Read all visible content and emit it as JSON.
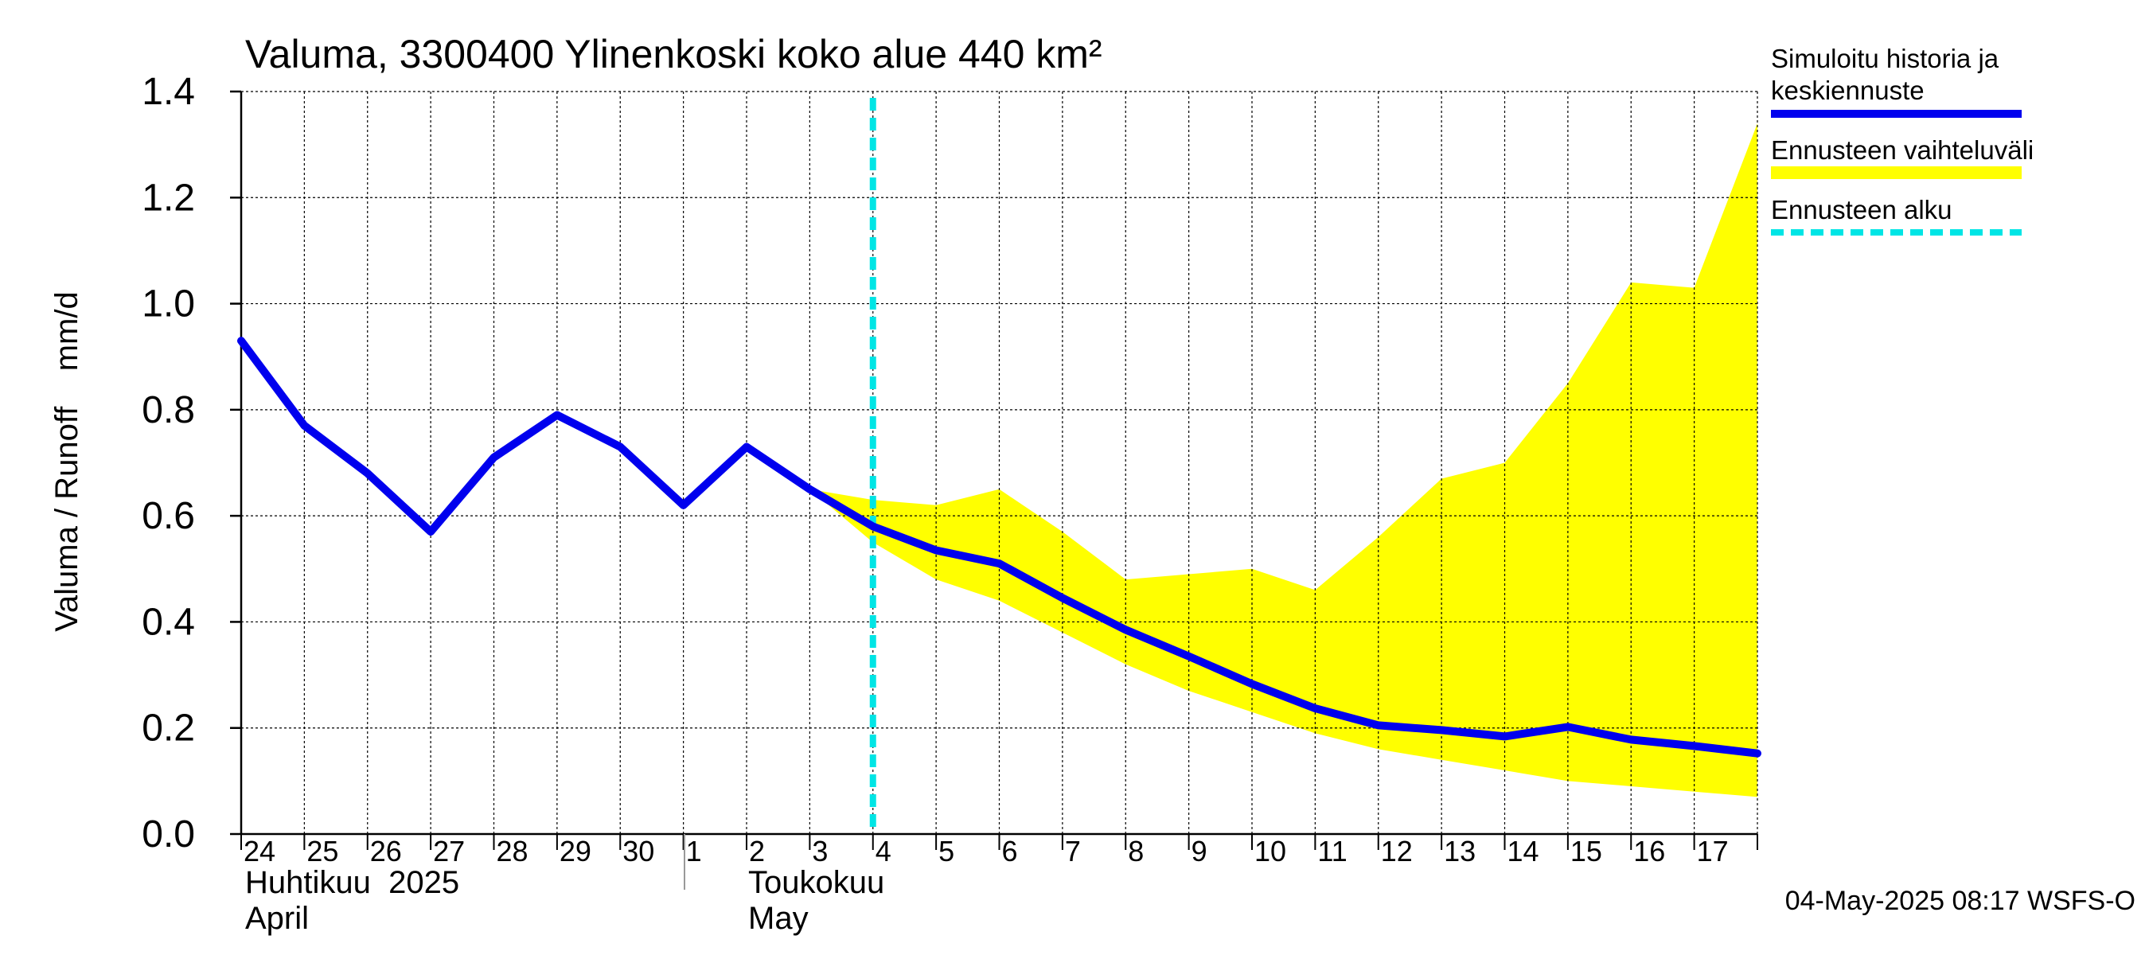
{
  "chart_data": {
    "type": "line",
    "title": "Valuma, 3300400 Ylinenkoski koko alue 440 km²",
    "ylabel": "Valuma / Runoff    mm/d",
    "ylim": [
      0,
      1.4
    ],
    "yticks": [
      0,
      0.2,
      0.4,
      0.6,
      0.8,
      1.0,
      1.2,
      1.4
    ],
    "ytick_labels": [
      "0.0",
      "0.2",
      "0.4",
      "0.6",
      "0.8",
      "1.0",
      "1.2",
      "1.4"
    ],
    "xlim": [
      "2025-04-24",
      "2025-05-18"
    ],
    "x_tick_labels": [
      "24",
      "25",
      "26",
      "27",
      "28",
      "29",
      "30",
      "1",
      "2",
      "3",
      "4",
      "5",
      "6",
      "7",
      "8",
      "9",
      "10",
      "11",
      "12",
      "13",
      "14",
      "15",
      "16",
      "17"
    ],
    "month_labels": [
      {
        "line1": "Huhtikuu  2025",
        "line2": "April"
      },
      {
        "line1": "Toukokuu",
        "line2": "May"
      }
    ],
    "grid": true,
    "legend_position": "right",
    "legend": [
      {
        "label_line1": "Simuloitu historia ja",
        "label_line2": "keskiennuste",
        "color": "#0000ee",
        "style": "solid"
      },
      {
        "label_line1": "Ennusteen vaihteluväli",
        "label_line2": "",
        "color": "#ffff00",
        "style": "band"
      },
      {
        "label_line1": "Ennusteen alku",
        "label_line2": "",
        "color": "#00e5e5",
        "style": "dashed"
      }
    ],
    "forecast_start": "2025-05-04",
    "series": [
      {
        "name": "Simuloitu historia ja keskiennuste",
        "color": "#0000ee",
        "x": [
          "2025-04-24",
          "2025-04-25",
          "2025-04-26",
          "2025-04-27",
          "2025-04-28",
          "2025-04-29",
          "2025-04-30",
          "2025-05-01",
          "2025-05-02",
          "2025-05-03",
          "2025-05-04",
          "2025-05-05",
          "2025-05-06",
          "2025-05-07",
          "2025-05-08",
          "2025-05-09",
          "2025-05-10",
          "2025-05-11",
          "2025-05-12",
          "2025-05-13",
          "2025-05-14",
          "2025-05-15",
          "2025-05-16",
          "2025-05-17",
          "2025-05-18"
        ],
        "y": [
          0.93,
          0.77,
          0.68,
          0.57,
          0.71,
          0.79,
          0.73,
          0.62,
          0.73,
          0.65,
          0.58,
          0.535,
          0.51,
          0.445,
          0.385,
          0.335,
          0.283,
          0.237,
          0.205,
          0.196,
          0.184,
          0.202,
          0.178,
          0.166,
          0.152
        ]
      },
      {
        "name": "Ennusteen vaihteluväli",
        "color": "#ffff00",
        "x": [
          "2025-05-03",
          "2025-05-04",
          "2025-05-05",
          "2025-05-06",
          "2025-05-07",
          "2025-05-08",
          "2025-05-09",
          "2025-05-10",
          "2025-05-11",
          "2025-05-12",
          "2025-05-13",
          "2025-05-14",
          "2025-05-15",
          "2025-05-16",
          "2025-05-17",
          "2025-05-18"
        ],
        "upper": [
          0.65,
          0.63,
          0.62,
          0.65,
          0.57,
          0.48,
          0.49,
          0.5,
          0.46,
          0.56,
          0.67,
          0.7,
          0.85,
          1.04,
          1.03,
          1.34
        ],
        "lower": [
          0.65,
          0.55,
          0.48,
          0.44,
          0.38,
          0.32,
          0.27,
          0.23,
          0.19,
          0.16,
          0.14,
          0.12,
          0.1,
          0.09,
          0.08,
          0.07
        ]
      }
    ]
  },
  "footer": {
    "timestamp": "04-May-2025 08:17 WSFS-O"
  }
}
